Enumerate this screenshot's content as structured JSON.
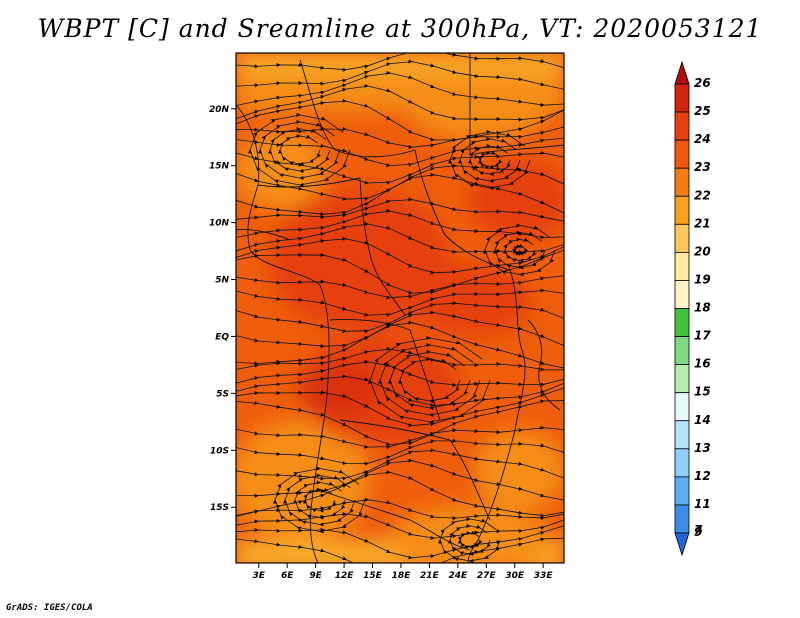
{
  "title": "WBPT [C] and Sreamline at 300hPa, VT: 2020053121",
  "footer": "GrADS: IGES/COLA",
  "map": {
    "lat_labels": [
      "20N",
      "15N",
      "10N",
      "5N",
      "EQ",
      "5S",
      "10S",
      "15S"
    ],
    "lat_values": [
      20,
      15,
      10,
      5,
      0,
      -5,
      -10,
      -15
    ],
    "lon_labels": [
      "3E",
      "6E",
      "9E",
      "12E",
      "15E",
      "18E",
      "21E",
      "24E",
      "27E",
      "30E",
      "33E"
    ],
    "lon_values": [
      3,
      6,
      9,
      12,
      15,
      18,
      21,
      24,
      27,
      30,
      33
    ],
    "lon_range": [
      0.6,
      35.2
    ],
    "lat_range": [
      -19.9,
      24.9
    ],
    "field_colors": {
      "base": "#ee5e0c",
      "light": "#f58e16",
      "edge": "#f7ad2a",
      "dark": "#e5400e",
      "deep": "#d9300e"
    }
  },
  "colorbar": {
    "labels": [
      "26",
      "25",
      "24",
      "23",
      "22",
      "21",
      "20",
      "19",
      "18",
      "17",
      "16",
      "15",
      "14",
      "13",
      "12",
      "11",
      "9",
      "7"
    ],
    "colors": [
      "#b40d0d",
      "#d4240d",
      "#e8400c",
      "#f05a10",
      "#f57b12",
      "#f7a11f",
      "#fbc65a",
      "#fde89c",
      "#fff3c4",
      "#3fc23f",
      "#7fda7f",
      "#b6eeb2",
      "#e6f9f9",
      "#b5e3fb",
      "#8ed0f8",
      "#5aaff2",
      "#3a8eea",
      "#2266d8"
    ]
  }
}
